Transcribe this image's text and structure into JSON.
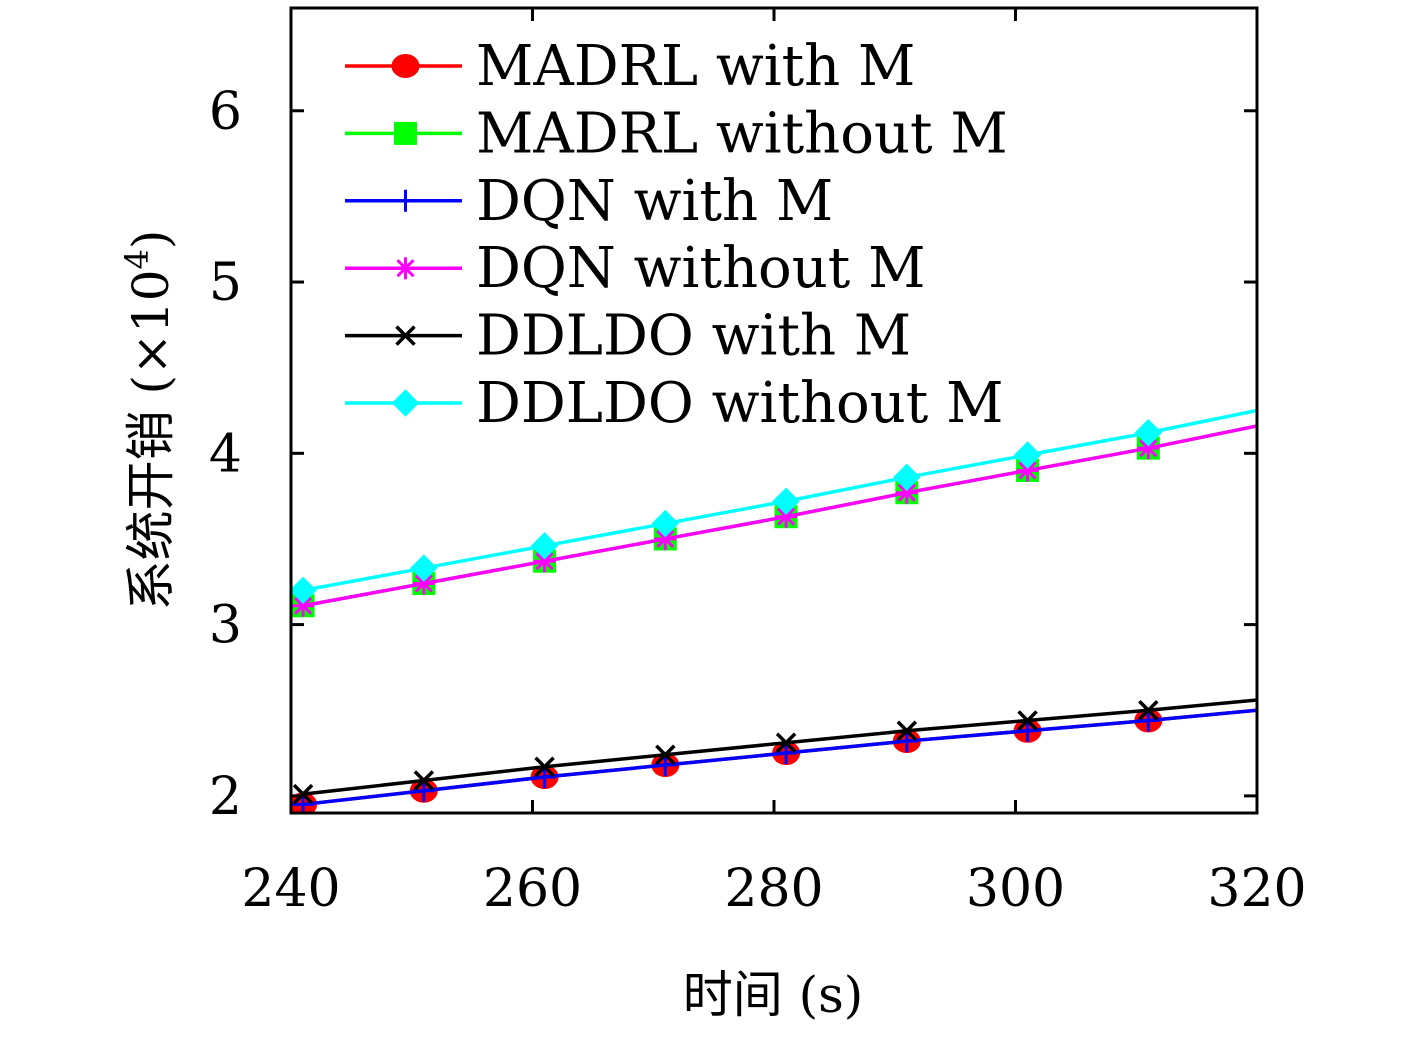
{
  "chart_data": {
    "type": "line",
    "title": "",
    "xlabel": "时间 (s)",
    "ylabel_main": "系统开销 (×10",
    "ylabel_exp": "4",
    "ylabel_close": ")",
    "xlim": [
      240,
      320
    ],
    "ylim": [
      1.9,
      6.6
    ],
    "xticks": [
      "240",
      "260",
      "280",
      "300",
      "320"
    ],
    "xtick_values": [
      240,
      260,
      280,
      300,
      320
    ],
    "yticks": [
      "2",
      "3",
      "4",
      "5",
      "6"
    ],
    "ytick_values": [
      2,
      3,
      4,
      5,
      6
    ],
    "grid": false,
    "legend_position": "top-left",
    "x": [
      241,
      251,
      261,
      271,
      281,
      291,
      301,
      311
    ],
    "series": [
      {
        "name": "MADRL with M",
        "color": "#ff0000",
        "marker": "circle",
        "values": [
          1.95,
          2.03,
          2.11,
          2.18,
          2.25,
          2.32,
          2.38,
          2.44
        ],
        "line_end": [
          320,
          2.5
        ]
      },
      {
        "name": "MADRL without M",
        "color": "#00ff00",
        "marker": "square",
        "values": [
          3.11,
          3.24,
          3.37,
          3.5,
          3.63,
          3.77,
          3.9,
          4.03
        ],
        "line_end": [
          320,
          4.16
        ]
      },
      {
        "name": "DQN with M",
        "color": "#0000ff",
        "marker": "plus",
        "values": [
          1.95,
          2.03,
          2.11,
          2.18,
          2.25,
          2.32,
          2.38,
          2.44
        ],
        "line_end": [
          320,
          2.5
        ]
      },
      {
        "name": "DQN without M",
        "color": "#ff00ff",
        "marker": "star",
        "values": [
          3.11,
          3.24,
          3.37,
          3.5,
          3.63,
          3.77,
          3.9,
          4.03
        ],
        "line_end": [
          320,
          4.16
        ]
      },
      {
        "name": "DDLDO with M",
        "color": "#000000",
        "marker": "x",
        "values": [
          2.01,
          2.09,
          2.17,
          2.24,
          2.31,
          2.38,
          2.44,
          2.5
        ],
        "line_end": [
          320,
          2.56
        ]
      },
      {
        "name": "DDLDO without M",
        "color": "#00ffff",
        "marker": "diamond",
        "values": [
          3.2,
          3.33,
          3.46,
          3.59,
          3.72,
          3.86,
          3.99,
          4.12
        ],
        "line_end": [
          320,
          4.25
        ]
      }
    ]
  }
}
